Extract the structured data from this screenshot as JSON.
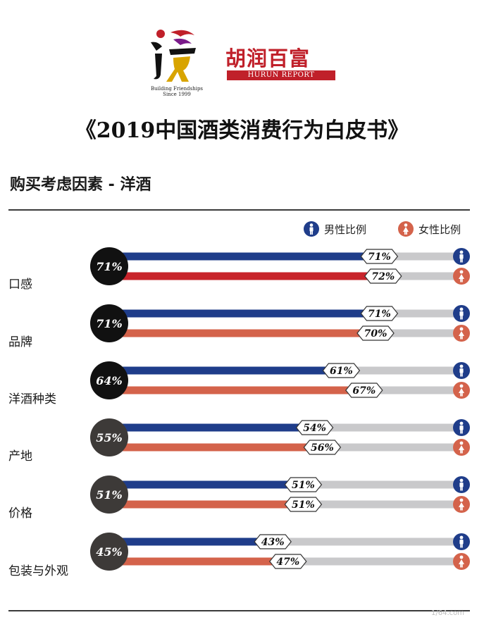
{
  "header": {
    "logo_left_tagline": "Building Friendships",
    "logo_left_since": "Since 1999",
    "logo_right_cn": "胡润百富",
    "logo_right_en": "HURUN REPORT"
  },
  "title": "《2019中国酒类消费行为白皮书》",
  "section_title": "购买考虑因素 - 洋酒",
  "legend": {
    "male": "男性比例",
    "female": "女性比例"
  },
  "colors": {
    "male": "#1f3d8a",
    "female_dark": "#c8242b",
    "female": "#d4634b",
    "track": "#c9c9cb",
    "total_dark": "#111111",
    "total_grey": "#3d3a38"
  },
  "watermark": "1/64.com",
  "chart_data": {
    "type": "bar",
    "orientation": "horizontal",
    "categories": [
      "口感",
      "品牌",
      "洋酒种类",
      "产地",
      "价格",
      "包装与外观"
    ],
    "totals": [
      "71%",
      "71%",
      "64%",
      "55%",
      "51%",
      "45%"
    ],
    "series": [
      {
        "name": "男性比例",
        "values": [
          71,
          71,
          61,
          54,
          51,
          43
        ],
        "labels": [
          "71%",
          "71%",
          "61%",
          "54%",
          "51%",
          "43%"
        ]
      },
      {
        "name": "女性比例",
        "values": [
          72,
          70,
          67,
          56,
          51,
          47
        ],
        "labels": [
          "72%",
          "70%",
          "67%",
          "56%",
          "51%",
          "47%"
        ]
      }
    ],
    "xlim": [
      0,
      100
    ]
  }
}
